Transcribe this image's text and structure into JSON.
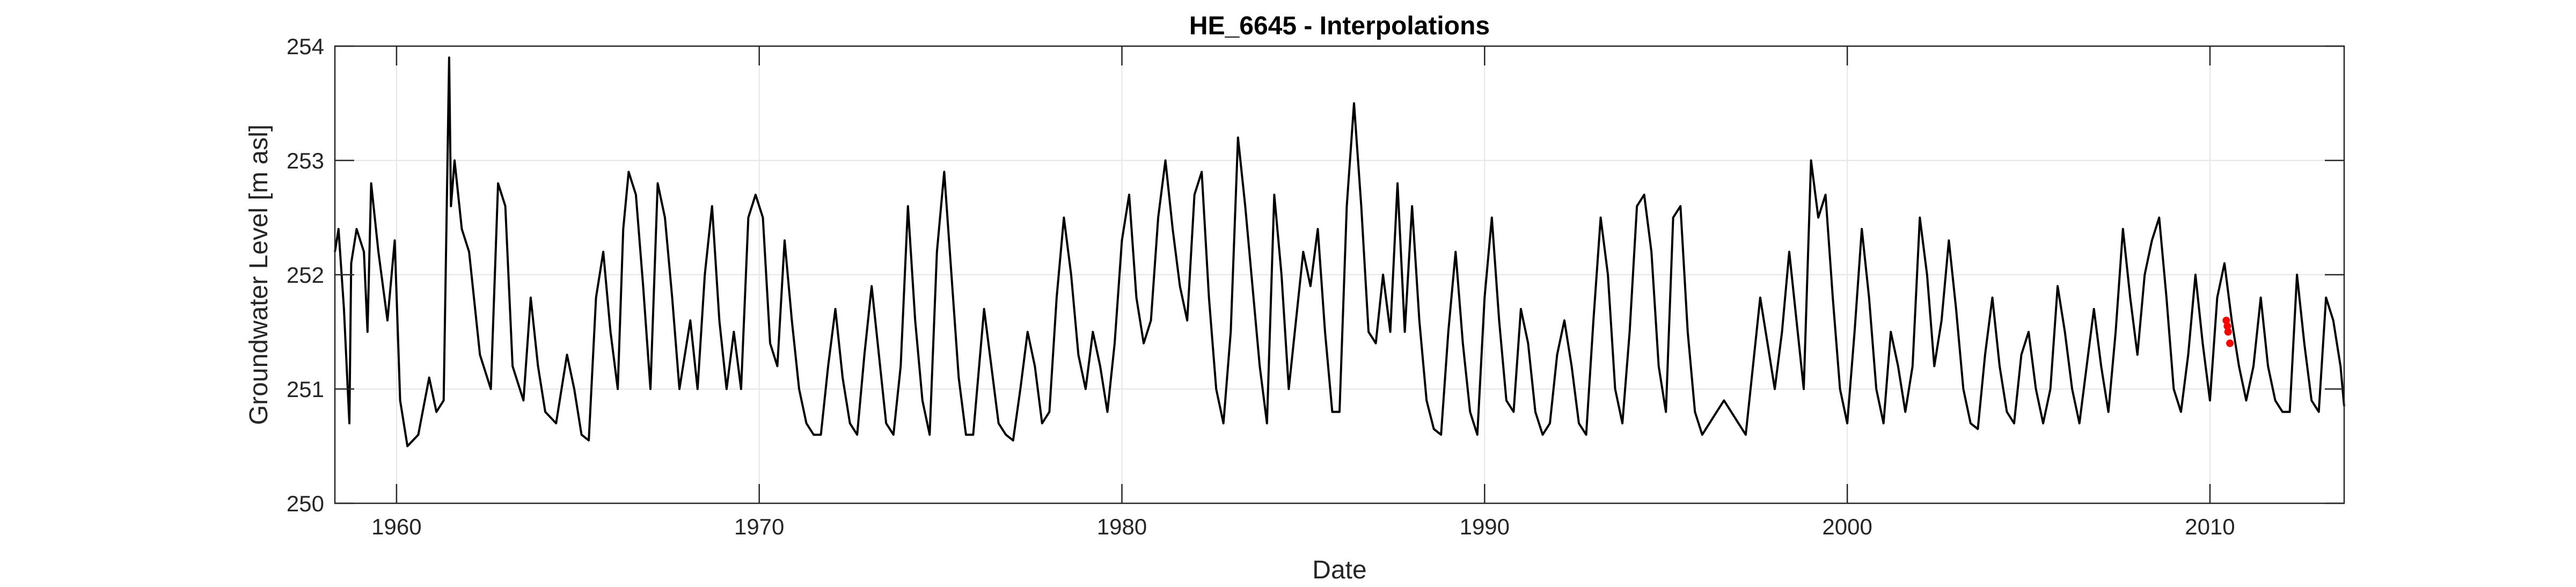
{
  "chart_data": {
    "type": "line",
    "title": "HE_6645 - Interpolations",
    "xlabel": "Date",
    "ylabel": "Groundwater Level [m asl]",
    "xlim": [
      1958.3,
      2013.7
    ],
    "ylim": [
      250,
      254
    ],
    "x_ticks": [
      1960,
      1970,
      1980,
      1990,
      2000,
      2010
    ],
    "x_tick_labels": [
      "1960",
      "1970",
      "1980",
      "1990",
      "2000",
      "2010"
    ],
    "y_ticks": [
      250,
      251,
      252,
      253,
      254
    ],
    "y_tick_labels": [
      "250",
      "251",
      "252",
      "253",
      "254"
    ],
    "grid": true,
    "colors": {
      "series": "#000000",
      "interpolations": "#ff0000",
      "grid": "#e6e6e6",
      "axes": "#262626"
    },
    "series": [
      {
        "values": [
          [
            1958.3,
            252.2
          ],
          [
            1958.4,
            252.4
          ],
          [
            1958.55,
            251.7
          ],
          [
            1958.7,
            250.7
          ],
          [
            1958.75,
            252.1
          ],
          [
            1958.9,
            252.4
          ],
          [
            1959.1,
            252.2
          ],
          [
            1959.2,
            251.5
          ],
          [
            1959.3,
            252.8
          ],
          [
            1959.5,
            252.2
          ],
          [
            1959.75,
            251.6
          ],
          [
            1959.95,
            252.3
          ],
          [
            1960.1,
            250.9
          ],
          [
            1960.3,
            250.5
          ],
          [
            1960.6,
            250.6
          ],
          [
            1960.9,
            251.1
          ],
          [
            1961.1,
            250.8
          ],
          [
            1961.3,
            250.9
          ],
          [
            1961.45,
            253.9
          ],
          [
            1961.5,
            252.6
          ],
          [
            1961.6,
            253.0
          ],
          [
            1961.8,
            252.4
          ],
          [
            1962.0,
            252.2
          ],
          [
            1962.3,
            251.3
          ],
          [
            1962.6,
            251.0
          ],
          [
            1962.8,
            252.8
          ],
          [
            1963.0,
            252.6
          ],
          [
            1963.2,
            251.2
          ],
          [
            1963.5,
            250.9
          ],
          [
            1963.7,
            251.8
          ],
          [
            1963.9,
            251.2
          ],
          [
            1964.1,
            250.8
          ],
          [
            1964.4,
            250.7
          ],
          [
            1964.7,
            251.3
          ],
          [
            1964.9,
            251.0
          ],
          [
            1965.1,
            250.6
          ],
          [
            1965.3,
            250.55
          ],
          [
            1965.5,
            251.8
          ],
          [
            1965.7,
            252.2
          ],
          [
            1965.9,
            251.5
          ],
          [
            1966.1,
            251.0
          ],
          [
            1966.25,
            252.4
          ],
          [
            1966.4,
            252.9
          ],
          [
            1966.6,
            252.7
          ],
          [
            1966.8,
            251.9
          ],
          [
            1967.0,
            251.0
          ],
          [
            1967.2,
            252.8
          ],
          [
            1967.4,
            252.5
          ],
          [
            1967.6,
            251.8
          ],
          [
            1967.8,
            251.0
          ],
          [
            1968.1,
            251.6
          ],
          [
            1968.3,
            251.0
          ],
          [
            1968.5,
            252.0
          ],
          [
            1968.7,
            252.6
          ],
          [
            1968.9,
            251.6
          ],
          [
            1969.1,
            251.0
          ],
          [
            1969.3,
            251.5
          ],
          [
            1969.5,
            251.0
          ],
          [
            1969.7,
            252.5
          ],
          [
            1969.9,
            252.7
          ],
          [
            1970.1,
            252.5
          ],
          [
            1970.3,
            251.4
          ],
          [
            1970.5,
            251.2
          ],
          [
            1970.7,
            252.3
          ],
          [
            1970.9,
            251.6
          ],
          [
            1971.1,
            251.0
          ],
          [
            1971.3,
            250.7
          ],
          [
            1971.5,
            250.6
          ],
          [
            1971.7,
            250.6
          ],
          [
            1971.9,
            251.2
          ],
          [
            1972.1,
            251.7
          ],
          [
            1972.3,
            251.1
          ],
          [
            1972.5,
            250.7
          ],
          [
            1972.7,
            250.6
          ],
          [
            1972.9,
            251.3
          ],
          [
            1973.1,
            251.9
          ],
          [
            1973.3,
            251.3
          ],
          [
            1973.5,
            250.7
          ],
          [
            1973.7,
            250.6
          ],
          [
            1973.9,
            251.2
          ],
          [
            1974.1,
            252.6
          ],
          [
            1974.3,
            251.6
          ],
          [
            1974.5,
            250.9
          ],
          [
            1974.7,
            250.6
          ],
          [
            1974.9,
            252.2
          ],
          [
            1975.1,
            252.9
          ],
          [
            1975.3,
            252.0
          ],
          [
            1975.5,
            251.1
          ],
          [
            1975.7,
            250.6
          ],
          [
            1975.9,
            250.6
          ],
          [
            1976.2,
            251.7
          ],
          [
            1976.4,
            251.2
          ],
          [
            1976.6,
            250.7
          ],
          [
            1976.8,
            250.6
          ],
          [
            1977.0,
            250.55
          ],
          [
            1977.2,
            251.0
          ],
          [
            1977.4,
            251.5
          ],
          [
            1977.6,
            251.2
          ],
          [
            1977.8,
            250.7
          ],
          [
            1978.0,
            250.8
          ],
          [
            1978.2,
            251.8
          ],
          [
            1978.4,
            252.5
          ],
          [
            1978.6,
            252.0
          ],
          [
            1978.8,
            251.3
          ],
          [
            1979.0,
            251.0
          ],
          [
            1979.2,
            251.5
          ],
          [
            1979.4,
            251.2
          ],
          [
            1979.6,
            250.8
          ],
          [
            1979.8,
            251.4
          ],
          [
            1980.0,
            252.3
          ],
          [
            1980.2,
            252.7
          ],
          [
            1980.4,
            251.8
          ],
          [
            1980.6,
            251.4
          ],
          [
            1980.8,
            251.6
          ],
          [
            1981.0,
            252.5
          ],
          [
            1981.2,
            253.0
          ],
          [
            1981.4,
            252.4
          ],
          [
            1981.6,
            251.9
          ],
          [
            1981.8,
            251.6
          ],
          [
            1982.0,
            252.7
          ],
          [
            1982.2,
            252.9
          ],
          [
            1982.4,
            251.8
          ],
          [
            1982.6,
            251.0
          ],
          [
            1982.8,
            250.7
          ],
          [
            1983.0,
            251.5
          ],
          [
            1983.2,
            253.2
          ],
          [
            1983.4,
            252.6
          ],
          [
            1983.6,
            251.9
          ],
          [
            1983.8,
            251.2
          ],
          [
            1984.0,
            250.7
          ],
          [
            1984.2,
            252.7
          ],
          [
            1984.4,
            252.0
          ],
          [
            1984.6,
            251.0
          ],
          [
            1984.8,
            251.6
          ],
          [
            1985.0,
            252.2
          ],
          [
            1985.2,
            251.9
          ],
          [
            1985.4,
            252.4
          ],
          [
            1985.6,
            251.5
          ],
          [
            1985.8,
            250.8
          ],
          [
            1986.0,
            250.8
          ],
          [
            1986.2,
            252.6
          ],
          [
            1986.4,
            253.5
          ],
          [
            1986.6,
            252.6
          ],
          [
            1986.8,
            251.5
          ],
          [
            1987.0,
            251.4
          ],
          [
            1987.2,
            252.0
          ],
          [
            1987.4,
            251.5
          ],
          [
            1987.6,
            252.8
          ],
          [
            1987.8,
            251.5
          ],
          [
            1988.0,
            252.6
          ],
          [
            1988.2,
            251.6
          ],
          [
            1988.4,
            250.9
          ],
          [
            1988.6,
            250.65
          ],
          [
            1988.8,
            250.6
          ],
          [
            1989.0,
            251.5
          ],
          [
            1989.2,
            252.2
          ],
          [
            1989.4,
            251.4
          ],
          [
            1989.6,
            250.8
          ],
          [
            1989.8,
            250.6
          ],
          [
            1990.0,
            251.8
          ],
          [
            1990.2,
            252.5
          ],
          [
            1990.4,
            251.6
          ],
          [
            1990.6,
            250.9
          ],
          [
            1990.8,
            250.8
          ],
          [
            1991.0,
            251.7
          ],
          [
            1991.2,
            251.4
          ],
          [
            1991.4,
            250.8
          ],
          [
            1991.6,
            250.6
          ],
          [
            1991.8,
            250.7
          ],
          [
            1992.0,
            251.3
          ],
          [
            1992.2,
            251.6
          ],
          [
            1992.4,
            251.2
          ],
          [
            1992.6,
            250.7
          ],
          [
            1992.8,
            250.6
          ],
          [
            1993.0,
            251.6
          ],
          [
            1993.2,
            252.5
          ],
          [
            1993.4,
            252.0
          ],
          [
            1993.6,
            251.0
          ],
          [
            1993.8,
            250.7
          ],
          [
            1994.0,
            251.5
          ],
          [
            1994.2,
            252.6
          ],
          [
            1994.4,
            252.7
          ],
          [
            1994.6,
            252.2
          ],
          [
            1994.8,
            251.2
          ],
          [
            1995.0,
            250.8
          ],
          [
            1995.2,
            252.5
          ],
          [
            1995.4,
            252.6
          ],
          [
            1995.6,
            251.5
          ],
          [
            1995.8,
            250.8
          ],
          [
            1996.0,
            250.6
          ],
          [
            1996.2,
            250.7
          ],
          [
            1996.4,
            250.8
          ],
          [
            1996.6,
            250.9
          ],
          [
            1996.8,
            250.8
          ],
          [
            1997.0,
            250.7
          ],
          [
            1997.2,
            250.6
          ],
          [
            1997.4,
            251.2
          ],
          [
            1997.6,
            251.8
          ],
          [
            1997.8,
            251.4
          ],
          [
            1998.0,
            251.0
          ],
          [
            1998.2,
            251.5
          ],
          [
            1998.4,
            252.2
          ],
          [
            1998.6,
            251.6
          ],
          [
            1998.8,
            251.0
          ],
          [
            1999.0,
            253.0
          ],
          [
            1999.2,
            252.5
          ],
          [
            1999.4,
            252.7
          ],
          [
            1999.6,
            251.8
          ],
          [
            1999.8,
            251.0
          ],
          [
            2000.0,
            250.7
          ],
          [
            2000.2,
            251.5
          ],
          [
            2000.4,
            252.4
          ],
          [
            2000.6,
            251.8
          ],
          [
            2000.8,
            251.0
          ],
          [
            2001.0,
            250.7
          ],
          [
            2001.2,
            251.5
          ],
          [
            2001.4,
            251.2
          ],
          [
            2001.6,
            250.8
          ],
          [
            2001.8,
            251.2
          ],
          [
            2002.0,
            252.5
          ],
          [
            2002.2,
            252.0
          ],
          [
            2002.4,
            251.2
          ],
          [
            2002.6,
            251.6
          ],
          [
            2002.8,
            252.3
          ],
          [
            2003.0,
            251.7
          ],
          [
            2003.2,
            251.0
          ],
          [
            2003.4,
            250.7
          ],
          [
            2003.6,
            250.65
          ],
          [
            2003.8,
            251.3
          ],
          [
            2004.0,
            251.8
          ],
          [
            2004.2,
            251.2
          ],
          [
            2004.4,
            250.8
          ],
          [
            2004.6,
            250.7
          ],
          [
            2004.8,
            251.3
          ],
          [
            2005.0,
            251.5
          ],
          [
            2005.2,
            251.0
          ],
          [
            2005.4,
            250.7
          ],
          [
            2005.6,
            251.0
          ],
          [
            2005.8,
            251.9
          ],
          [
            2006.0,
            251.5
          ],
          [
            2006.2,
            251.0
          ],
          [
            2006.4,
            250.7
          ],
          [
            2006.6,
            251.2
          ],
          [
            2006.8,
            251.7
          ],
          [
            2007.0,
            251.2
          ],
          [
            2007.2,
            250.8
          ],
          [
            2007.4,
            251.5
          ],
          [
            2007.6,
            252.4
          ],
          [
            2007.8,
            251.8
          ],
          [
            2008.0,
            251.3
          ],
          [
            2008.2,
            252.0
          ],
          [
            2008.4,
            252.3
          ],
          [
            2008.6,
            252.5
          ],
          [
            2008.8,
            251.8
          ],
          [
            2009.0,
            251.0
          ],
          [
            2009.2,
            250.8
          ],
          [
            2009.4,
            251.3
          ],
          [
            2009.6,
            252.0
          ],
          [
            2009.8,
            251.4
          ],
          [
            2010.0,
            250.9
          ],
          [
            2010.2,
            251.8
          ],
          [
            2010.4,
            252.1
          ],
          [
            2010.6,
            251.6
          ],
          [
            2010.8,
            251.2
          ],
          [
            2011.0,
            250.9
          ],
          [
            2011.2,
            251.2
          ],
          [
            2011.4,
            251.8
          ],
          [
            2011.6,
            251.2
          ],
          [
            2011.8,
            250.9
          ],
          [
            2012.0,
            250.8
          ],
          [
            2012.2,
            250.8
          ],
          [
            2012.4,
            252.0
          ],
          [
            2012.6,
            251.4
          ],
          [
            2012.8,
            250.9
          ],
          [
            2013.0,
            250.8
          ],
          [
            2013.2,
            251.8
          ],
          [
            2013.4,
            251.6
          ],
          [
            2013.6,
            251.2
          ],
          [
            2013.7,
            250.85
          ]
        ]
      },
      {
        "values": [
          [
            2010.45,
            251.6
          ],
          [
            2010.5,
            251.5
          ],
          [
            2010.55,
            251.4
          ],
          [
            2010.48,
            251.55
          ]
        ]
      }
    ]
  }
}
